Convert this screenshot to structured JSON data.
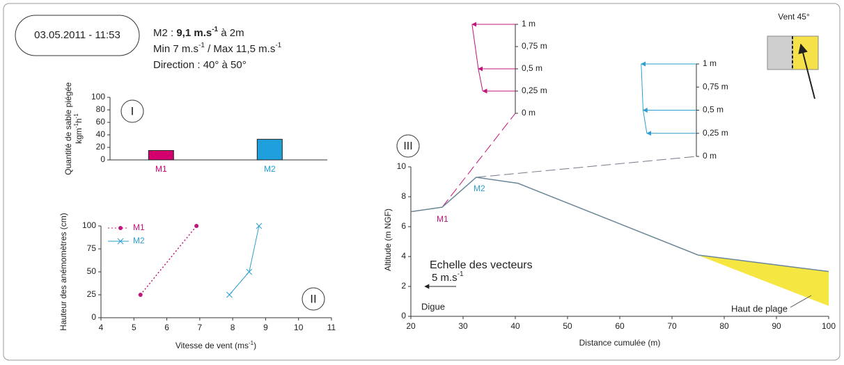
{
  "header": {
    "date": "03.05.2011 - 11:53",
    "line1": [
      "M2 : ",
      "9,1 m.s",
      "-1",
      " à 2m"
    ],
    "line2": [
      "Min 7 m.s",
      "-1",
      " / Max 11,5 m.s",
      "-1"
    ],
    "line3": "Direction : 40° à 50°"
  },
  "chart_data": [
    {
      "type": "bar",
      "panel": "I",
      "ylabel": "Quantité de sable piégée",
      "ylabel2": [
        "kgm",
        "-1",
        "h",
        "-1"
      ],
      "categories": [
        "M1",
        "M2"
      ],
      "values": [
        15,
        33
      ],
      "colors": [
        "#d4006e",
        "#1fa0dc"
      ],
      "ylim": [
        0,
        100
      ],
      "yticks": [
        0,
        20,
        40,
        60,
        80,
        100
      ]
    },
    {
      "type": "line",
      "panel": "II",
      "xlabel": [
        "Vitesse de vent (ms",
        "-1",
        ")"
      ],
      "ylabel": "Hauteur des anémomètres (cm)",
      "xlim": [
        4,
        11
      ],
      "xticks": [
        4,
        5,
        6,
        7,
        8,
        9,
        10,
        11
      ],
      "ylim": [
        0,
        100
      ],
      "yticks": [
        0,
        25,
        50,
        75,
        100
      ],
      "series": [
        {
          "name": "M1",
          "color": "#c0157a",
          "x": [
            5.2,
            6.9
          ],
          "values": [
            25,
            100
          ],
          "dashed": true,
          "marker": "dot"
        },
        {
          "name": "M2",
          "color": "#2a9fd0",
          "x": [
            7.9,
            8.5,
            8.8
          ],
          "values": [
            25,
            50,
            100
          ],
          "dashed": false,
          "marker": "x"
        }
      ]
    },
    {
      "type": "profile",
      "panel": "III",
      "xlabel": "Distance cumulée (m)",
      "ylabel": "Altitude (m NGF)",
      "xlim": [
        20,
        100
      ],
      "xticks": [
        20,
        30,
        40,
        50,
        60,
        70,
        80,
        90,
        100
      ],
      "ylim": [
        0,
        10
      ],
      "yticks": [
        0,
        2,
        4,
        6,
        8,
        10
      ],
      "series": [
        {
          "color": "#6b8797",
          "x": [
            20,
            26,
            32.5,
            40.5,
            75,
            100
          ],
          "values": [
            7,
            7.3,
            9.3,
            8.9,
            4.1,
            3.0
          ]
        }
      ],
      "annotations": {
        "m1": "M1",
        "m2": "M2",
        "dike": "Digue",
        "beach": "Haut de plage",
        "wind": "Vent 45°"
      },
      "scale_title": "Echelle des vecteurs",
      "scale_value": 5,
      "scale_text": "5 m.s",
      "scale_sup": "-1"
    },
    {
      "type": "vector",
      "name": "M1",
      "color": "#c0157a",
      "ylim": [
        0,
        1
      ],
      "yticks": [
        {
          "value": 0,
          "label": "0 m"
        },
        {
          "value": 0.25,
          "label": "0,25 m"
        },
        {
          "value": 0.5,
          "label": "0,5 m"
        },
        {
          "value": 0.75,
          "label": "0,75 m"
        },
        {
          "value": 1,
          "label": "1 m"
        }
      ],
      "heights": [
        0.25,
        0.5,
        1
      ],
      "values": [
        5.2,
        5.9,
        6.9
      ]
    },
    {
      "type": "vector",
      "name": "M2",
      "color": "#2a9fd0",
      "ylim": [
        0,
        1
      ],
      "yticks": [
        {
          "value": 0,
          "label": "0 m"
        },
        {
          "value": 0.25,
          "label": "0,25 m"
        },
        {
          "value": 0.5,
          "label": "0,5 m"
        },
        {
          "value": 0.75,
          "label": "0,75 m"
        },
        {
          "value": 1,
          "label": "1 m"
        }
      ],
      "heights": [
        0.25,
        0.5,
        1
      ],
      "values": [
        7.9,
        8.5,
        8.8
      ]
    }
  ]
}
